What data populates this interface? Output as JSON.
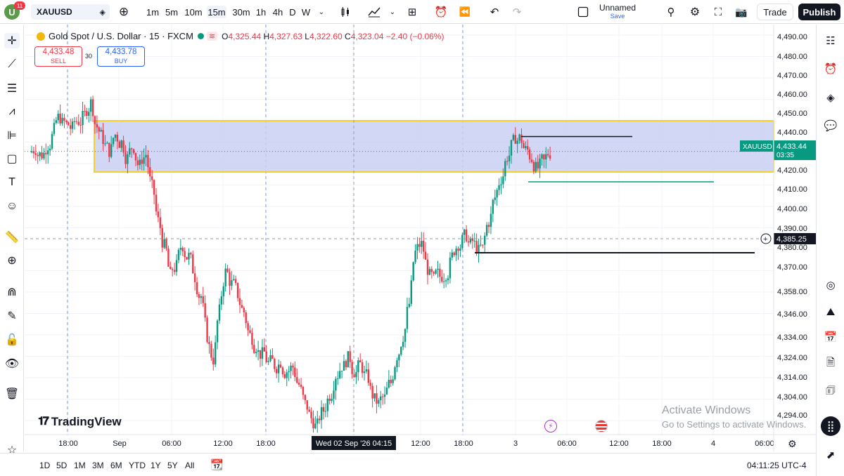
{
  "topbar": {
    "avatar_letter": "U",
    "notifications": "11",
    "symbol": "XAUUSD",
    "intervals": [
      "1m",
      "5m",
      "10m",
      "15m",
      "30m",
      "1h",
      "4h",
      "D",
      "W"
    ],
    "active_interval": "15m",
    "layout_name": "Unnamed",
    "layout_save": "Save",
    "trade_label": "Trade",
    "publish_label": "Publish"
  },
  "legend": {
    "title": "Gold Spot / U.S. Dollar · 15 · FXCM",
    "o_label": "O",
    "o": "4,325.44",
    "h_label": "H",
    "h": "4,327.63",
    "l_label": "L",
    "l": "4,322.60",
    "c_label": "C",
    "c": "4,323.04",
    "change": "−2.40 (−0.06%)"
  },
  "trade_panel": {
    "sell_price": "4,433.48",
    "sell_label": "SELL",
    "spread": "30",
    "buy_price": "4,433.78",
    "buy_label": "BUY"
  },
  "price_axis": {
    "ticks": [
      "4,490.00",
      "4,480.00",
      "4,470.00",
      "4,460.00",
      "4,450.00",
      "4,440.00",
      "4,420.00",
      "4,410.00",
      "4,400.00",
      "4,390.00",
      "4,380.00",
      "4,370.00",
      "4,358.00",
      "4,346.00",
      "4,334.00",
      "4,324.00",
      "4,314.00",
      "4,304.00",
      "4,294.00"
    ],
    "symbol_tag": "XAUUSD",
    "current_price": "4,433.44",
    "countdown": "03:35",
    "crosshair_price": "4,385.25"
  },
  "time_axis": {
    "labels": [
      "18:00",
      "Sep",
      "06:00",
      "12:00",
      "18:00",
      "12:00",
      "18:00",
      "3",
      "06:00",
      "12:00",
      "18:00",
      "4",
      "06:00"
    ],
    "crosshair_label": "Wed 02 Sep '26   04:15"
  },
  "watermark": {
    "brand": "TradingView",
    "activate_title": "Activate Windows",
    "activate_sub": "Go to Settings to activate Windows."
  },
  "bottombar": {
    "ranges": [
      "1D",
      "5D",
      "1M",
      "3M",
      "6M",
      "YTD",
      "1Y",
      "5Y",
      "All"
    ],
    "clock": "04:11:25 UTC-4"
  },
  "colors": {
    "up": "#089981",
    "down": "#f23645",
    "zone_fill": "#c5cdf3",
    "zone_border": "#f2d22b",
    "accent": "#2962ff"
  },
  "chart_data": {
    "type": "candlestick",
    "symbol": "XAUUSD",
    "timeframe": "15",
    "visible_range": [
      4290,
      4495
    ],
    "current_price": 4433.44,
    "demand_supply_zone": {
      "top": 4449,
      "bottom": 4423
    },
    "horizontal_lines": [
      {
        "price": 4441,
        "color": "#131722"
      },
      {
        "price": 4418,
        "color": "#089981"
      },
      {
        "price": 4382,
        "color": "#131722"
      }
    ],
    "path_close": [
      4435,
      4432,
      4437,
      4444,
      4451,
      4447,
      4445,
      4449,
      4452,
      4458,
      4446,
      4440,
      4434,
      4442,
      4438,
      4430,
      4436,
      4426,
      4432,
      4415,
      4398,
      4385,
      4370,
      4375,
      4386,
      4380,
      4370,
      4360,
      4340,
      4328,
      4352,
      4372,
      4366,
      4361,
      4352,
      4340,
      4335,
      4330,
      4326,
      4325,
      4327,
      4322,
      4324,
      4315,
      4305,
      4298,
      4294,
      4302,
      4310,
      4320,
      4325,
      4328,
      4322,
      4325,
      4319,
      4310,
      4305,
      4308,
      4316,
      4330,
      4340,
      4356,
      4382,
      4386,
      4374,
      4368,
      4370,
      4372,
      4380,
      4387,
      4390,
      4386,
      4385,
      4384,
      4398,
      4410,
      4420,
      4431,
      4438,
      4440,
      4434,
      4430,
      4425,
      4428,
      4433
    ]
  }
}
